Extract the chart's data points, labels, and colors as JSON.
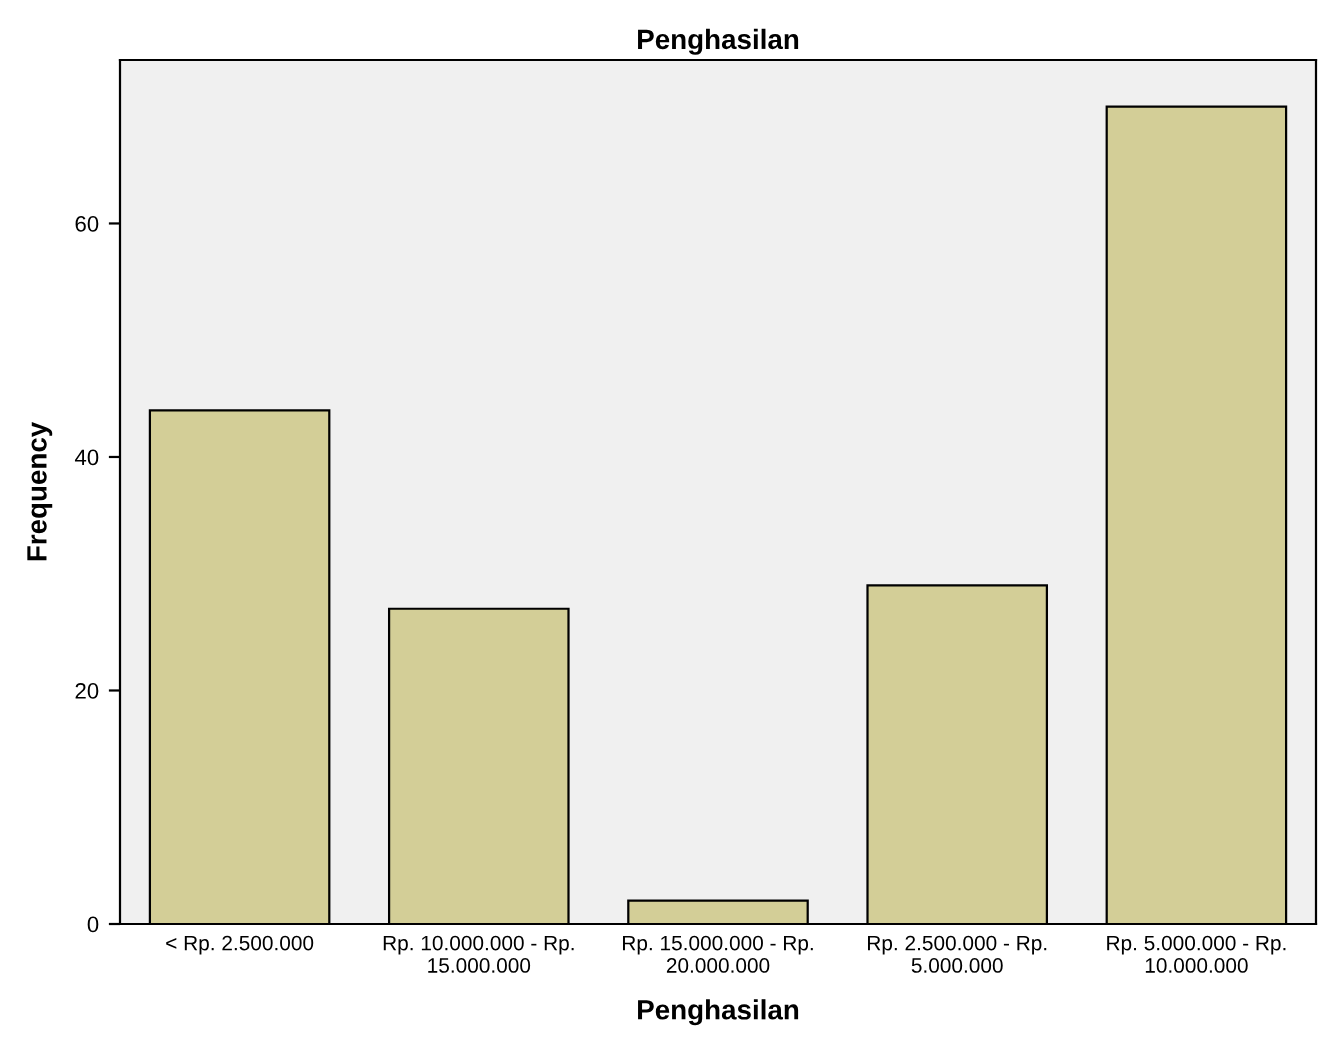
{
  "chart_data": {
    "type": "bar",
    "title": "Penghasilan",
    "xlabel": "Penghasilan",
    "ylabel": "Frequency",
    "categories": [
      "< Rp. 2.500.000",
      "Rp. 10.000.000 - Rp.\n15.000.000",
      "Rp. 15.000.000 - Rp.\n20.000.000",
      "Rp. 2.500.000 - Rp.\n5.000.000",
      "Rp. 5.000.000 - Rp.\n10.000.000"
    ],
    "values": [
      44,
      27,
      2,
      29,
      70
    ],
    "color": "#d3ce97",
    "ylim": [
      0,
      74
    ],
    "yticks": [
      0,
      20,
      40,
      60
    ],
    "grid": false
  }
}
